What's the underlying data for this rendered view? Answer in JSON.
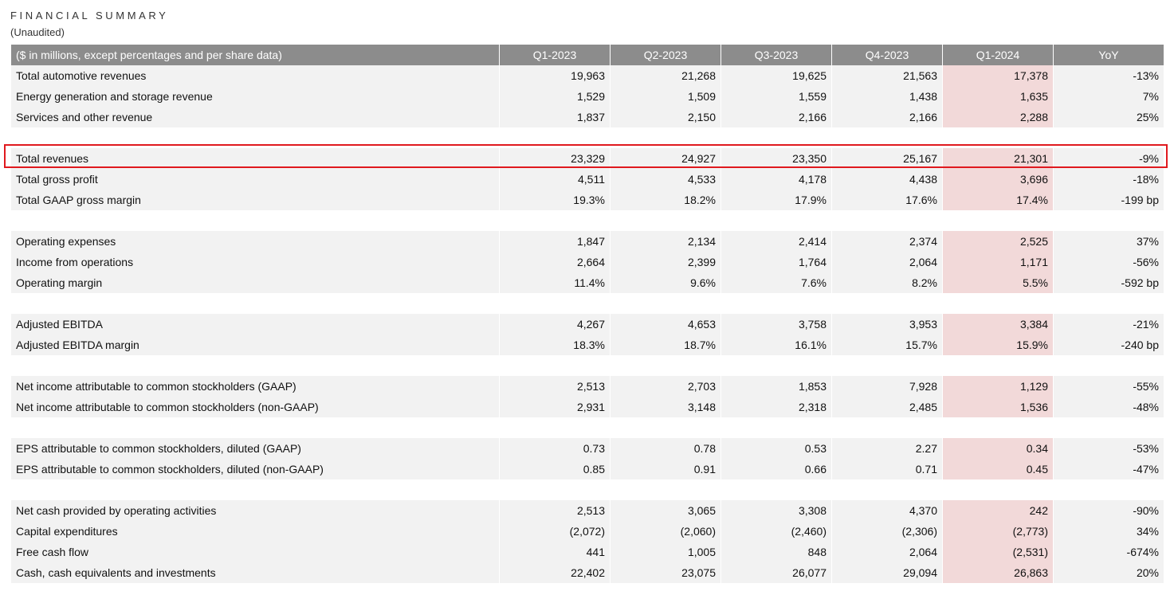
{
  "title": "FINANCIAL SUMMARY",
  "subtitle": "(Unaudited)",
  "accent_colors": {
    "header_bg": "#8c8c8c",
    "row_bg": "#f2f2f2",
    "highlight_column_bg": "#f2d9d9",
    "highlight_box_border": "#e0191e"
  },
  "columns": [
    "($ in millions, except percentages and per share data)",
    "Q1-2023",
    "Q2-2023",
    "Q3-2023",
    "Q4-2023",
    "Q1-2024",
    "YoY"
  ],
  "groups": [
    {
      "rows": [
        {
          "label": "Total automotive revenues",
          "values": [
            "19,963",
            "21,268",
            "19,625",
            "21,563",
            "17,378",
            "-13%"
          ]
        },
        {
          "label": "Energy generation and storage revenue",
          "values": [
            "1,529",
            "1,509",
            "1,559",
            "1,438",
            "1,635",
            "7%"
          ]
        },
        {
          "label": "Services and other revenue",
          "values": [
            "1,837",
            "2,150",
            "2,166",
            "2,166",
            "2,288",
            "25%"
          ]
        }
      ]
    },
    {
      "rows": [
        {
          "label": "Total revenues",
          "values": [
            "23,329",
            "24,927",
            "23,350",
            "25,167",
            "21,301",
            "-9%"
          ]
        },
        {
          "label": "Total gross profit",
          "values": [
            "4,511",
            "4,533",
            "4,178",
            "4,438",
            "3,696",
            "-18%"
          ]
        },
        {
          "label": "Total GAAP gross margin",
          "values": [
            "19.3%",
            "18.2%",
            "17.9%",
            "17.6%",
            "17.4%",
            "-199 bp"
          ]
        }
      ]
    },
    {
      "rows": [
        {
          "label": "Operating expenses",
          "values": [
            "1,847",
            "2,134",
            "2,414",
            "2,374",
            "2,525",
            "37%"
          ]
        },
        {
          "label": "Income from operations",
          "values": [
            "2,664",
            "2,399",
            "1,764",
            "2,064",
            "1,171",
            "-56%"
          ]
        },
        {
          "label": "Operating margin",
          "values": [
            "11.4%",
            "9.6%",
            "7.6%",
            "8.2%",
            "5.5%",
            "-592 bp"
          ]
        }
      ]
    },
    {
      "rows": [
        {
          "label": "Adjusted EBITDA",
          "values": [
            "4,267",
            "4,653",
            "3,758",
            "3,953",
            "3,384",
            "-21%"
          ]
        },
        {
          "label": "Adjusted EBITDA margin",
          "values": [
            "18.3%",
            "18.7%",
            "16.1%",
            "15.7%",
            "15.9%",
            "-240 bp"
          ]
        }
      ]
    },
    {
      "rows": [
        {
          "label": "Net income attributable to common stockholders (GAAP)",
          "values": [
            "2,513",
            "2,703",
            "1,853",
            "7,928",
            "1,129",
            "-55%"
          ]
        },
        {
          "label": "Net income attributable to common stockholders (non-GAAP)",
          "values": [
            "2,931",
            "3,148",
            "2,318",
            "2,485",
            "1,536",
            "-48%"
          ]
        }
      ]
    },
    {
      "rows": [
        {
          "label": "EPS attributable to common stockholders, diluted (GAAP)",
          "values": [
            "0.73",
            "0.78",
            "0.53",
            "2.27",
            "0.34",
            "-53%"
          ]
        },
        {
          "label": "EPS attributable to common stockholders, diluted (non-GAAP)",
          "values": [
            "0.85",
            "0.91",
            "0.66",
            "0.71",
            "0.45",
            "-47%"
          ]
        }
      ]
    },
    {
      "rows": [
        {
          "label": "Net cash provided by operating activities",
          "values": [
            "2,513",
            "3,065",
            "3,308",
            "4,370",
            "242",
            "-90%"
          ]
        },
        {
          "label": "Capital expenditures",
          "values": [
            "(2,072)",
            "(2,060)",
            "(2,460)",
            "(2,306)",
            "(2,773)",
            "34%"
          ]
        },
        {
          "label": "Free cash flow",
          "values": [
            "441",
            "1,005",
            "848",
            "2,064",
            "(2,531)",
            "-674%"
          ]
        },
        {
          "label": "Cash, cash equivalents and investments",
          "values": [
            "22,402",
            "23,075",
            "26,077",
            "29,094",
            "26,863",
            "20%"
          ]
        }
      ]
    }
  ]
}
